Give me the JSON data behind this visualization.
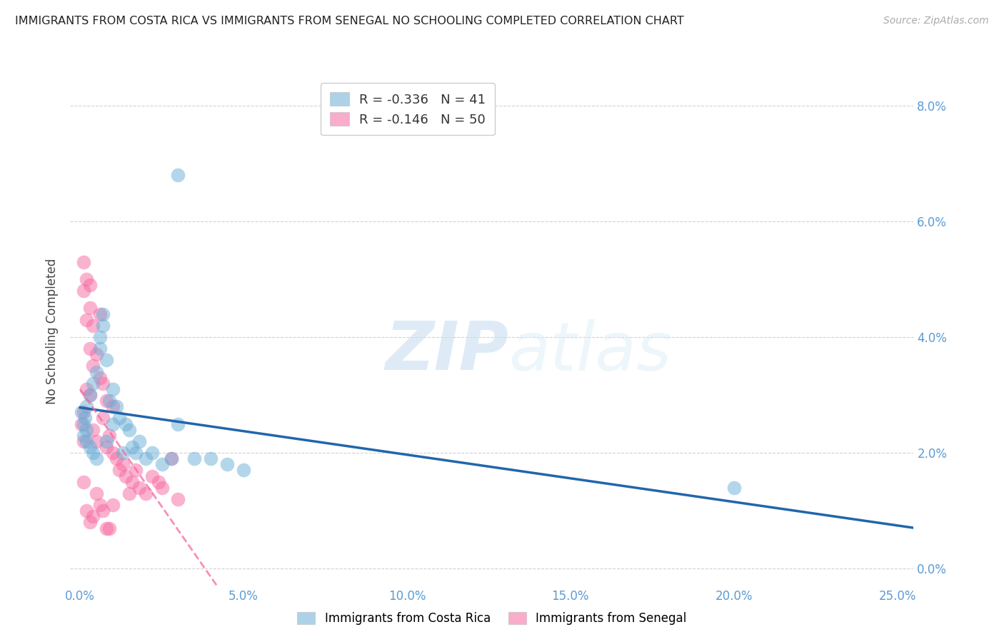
{
  "title": "IMMIGRANTS FROM COSTA RICA VS IMMIGRANTS FROM SENEGAL NO SCHOOLING COMPLETED CORRELATION CHART",
  "source": "Source: ZipAtlas.com",
  "xlim": [
    -0.003,
    0.255
  ],
  "ylim": [
    -0.003,
    0.085
  ],
  "yticks": [
    0.0,
    0.02,
    0.04,
    0.06,
    0.08
  ],
  "xticks": [
    0.0,
    0.05,
    0.1,
    0.15,
    0.2,
    0.25
  ],
  "legend_r_blue": "-0.336",
  "legend_n_blue": "41",
  "legend_r_pink": "-0.146",
  "legend_n_pink": "50",
  "legend_label_blue": "Immigrants from Costa Rica",
  "legend_label_pink": "Immigrants from Senegal",
  "color_blue": "#6baed6",
  "color_blue_line": "#2166ac",
  "color_pink": "#f768a1",
  "color_pink_line": "#f768a1",
  "watermark_zip": "ZIP",
  "watermark_atlas": "atlas",
  "costa_rica_x": [
    0.0005,
    0.001,
    0.001,
    0.0015,
    0.002,
    0.002,
    0.002,
    0.003,
    0.003,
    0.004,
    0.004,
    0.005,
    0.005,
    0.006,
    0.006,
    0.007,
    0.007,
    0.008,
    0.008,
    0.009,
    0.01,
    0.01,
    0.011,
    0.012,
    0.013,
    0.014,
    0.015,
    0.016,
    0.017,
    0.018,
    0.02,
    0.022,
    0.025,
    0.028,
    0.03,
    0.035,
    0.04,
    0.045,
    0.05,
    0.2,
    0.03
  ],
  "costa_rica_y": [
    0.027,
    0.025,
    0.023,
    0.026,
    0.024,
    0.022,
    0.028,
    0.021,
    0.03,
    0.02,
    0.032,
    0.019,
    0.034,
    0.04,
    0.038,
    0.044,
    0.042,
    0.022,
    0.036,
    0.029,
    0.025,
    0.031,
    0.028,
    0.026,
    0.02,
    0.025,
    0.024,
    0.021,
    0.02,
    0.022,
    0.019,
    0.02,
    0.018,
    0.019,
    0.025,
    0.019,
    0.019,
    0.018,
    0.017,
    0.014,
    0.068
  ],
  "senegal_x": [
    0.0005,
    0.001,
    0.001,
    0.001,
    0.001,
    0.002,
    0.002,
    0.002,
    0.003,
    0.003,
    0.003,
    0.003,
    0.004,
    0.004,
    0.004,
    0.005,
    0.005,
    0.006,
    0.006,
    0.007,
    0.007,
    0.008,
    0.008,
    0.009,
    0.01,
    0.01,
    0.011,
    0.012,
    0.013,
    0.014,
    0.015,
    0.016,
    0.017,
    0.018,
    0.02,
    0.022,
    0.024,
    0.025,
    0.028,
    0.03,
    0.001,
    0.002,
    0.003,
    0.004,
    0.005,
    0.006,
    0.007,
    0.008,
    0.009,
    0.01
  ],
  "senegal_y": [
    0.025,
    0.048,
    0.053,
    0.027,
    0.022,
    0.05,
    0.043,
    0.031,
    0.049,
    0.038,
    0.03,
    0.045,
    0.042,
    0.035,
    0.024,
    0.037,
    0.022,
    0.033,
    0.044,
    0.032,
    0.026,
    0.029,
    0.021,
    0.023,
    0.02,
    0.028,
    0.019,
    0.017,
    0.018,
    0.016,
    0.013,
    0.015,
    0.017,
    0.014,
    0.013,
    0.016,
    0.015,
    0.014,
    0.019,
    0.012,
    0.015,
    0.01,
    0.008,
    0.009,
    0.013,
    0.011,
    0.01,
    0.007,
    0.007,
    0.011
  ]
}
